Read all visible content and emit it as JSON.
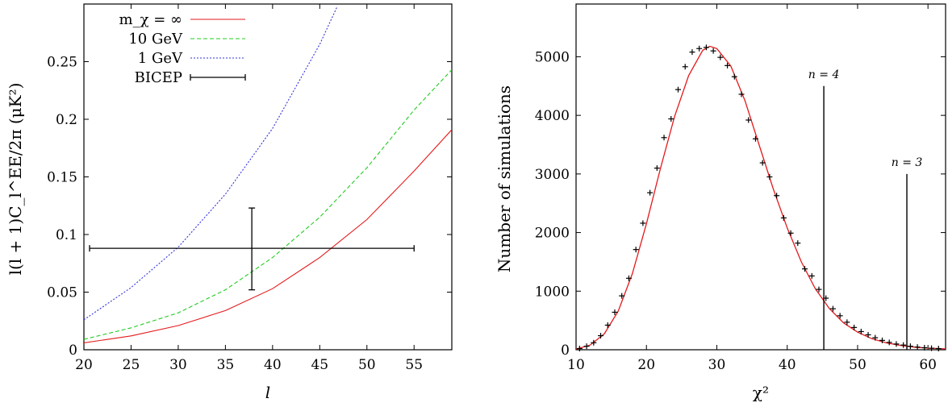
{
  "chart_data": [
    {
      "type": "line",
      "xlabel": "l",
      "ylabel": "l(l + 1)C_l^EE/2π (μK²)",
      "xlim": [
        20,
        59
      ],
      "ylim": [
        0,
        0.3
      ],
      "x_ticks": [
        "20",
        "25",
        "30",
        "35",
        "40",
        "45",
        "50",
        "55"
      ],
      "y_ticks": [
        "0",
        "0.05",
        "0.1",
        "0.15",
        "0.2",
        "0.25"
      ],
      "legend_placement": "top-left",
      "series": [
        {
          "name": "m_χ = ∞",
          "color": "#e41a1c",
          "dash": "solid",
          "x": [
            20,
            25,
            30,
            35,
            40,
            45,
            50,
            55,
            59
          ],
          "y": [
            0.006,
            0.012,
            0.021,
            0.034,
            0.053,
            0.08,
            0.113,
            0.155,
            0.191
          ]
        },
        {
          "name": "10 GeV",
          "color": "#22cc22",
          "dash": "dashed",
          "x": [
            20,
            25,
            30,
            35,
            40,
            45,
            50,
            55,
            59
          ],
          "y": [
            0.009,
            0.019,
            0.032,
            0.052,
            0.08,
            0.115,
            0.158,
            0.208,
            0.243
          ]
        },
        {
          "name": "1 GeV",
          "color": "#3333dd",
          "dash": "dotted",
          "x": [
            20,
            25,
            30,
            35,
            40,
            45,
            46.8
          ],
          "y": [
            0.026,
            0.054,
            0.089,
            0.135,
            0.192,
            0.265,
            0.297
          ]
        }
      ],
      "errorbar": {
        "name": "BICEP",
        "color": "#000000",
        "x": 37.8,
        "y": 0.088,
        "xerr": [
          20.6,
          55
        ],
        "yerr": [
          0.052,
          0.123
        ]
      }
    },
    {
      "type": "scatter",
      "xlabel": "χ²",
      "ylabel": "Number of simulations",
      "xlim": [
        10,
        62.5
      ],
      "ylim": [
        0,
        5900
      ],
      "x_ticks": [
        "10",
        "20",
        "30",
        "40",
        "50",
        "60"
      ],
      "y_ticks": [
        "0",
        "1000",
        "2000",
        "3000",
        "4000",
        "5000"
      ],
      "points": {
        "color": "#000000",
        "x": [
          10.5,
          11.5,
          12.5,
          13.5,
          14.5,
          15.5,
          16.5,
          17.5,
          18.5,
          19.5,
          20.5,
          21.5,
          22.5,
          23.5,
          24.5,
          25.5,
          26.5,
          27.5,
          28.5,
          29.5,
          30.5,
          31.5,
          32.5,
          33.5,
          34.5,
          35.5,
          36.5,
          37.5,
          38.5,
          39.5,
          40.5,
          41.5,
          42.5,
          43.5,
          44.5,
          45.5,
          46.5,
          47.5,
          48.5,
          49.5,
          50.5,
          51.5,
          52.5,
          53.5,
          54.5,
          55.5,
          56.5,
          57.5,
          58.5,
          59.5,
          60.5,
          61.5
        ],
        "y": [
          20,
          60,
          120,
          240,
          420,
          640,
          920,
          1220,
          1710,
          2160,
          2680,
          3100,
          3620,
          3940,
          4440,
          4830,
          5080,
          5140,
          5160,
          5100,
          4990,
          4850,
          4660,
          4360,
          3920,
          3600,
          3190,
          2950,
          2630,
          2250,
          1990,
          1820,
          1380,
          1260,
          1030,
          880,
          700,
          580,
          470,
          380,
          310,
          255,
          205,
          160,
          125,
          98,
          80,
          60,
          46,
          35,
          26,
          20
        ]
      },
      "fit_curve": {
        "color": "#e41a1c",
        "x": [
          10,
          12,
          14,
          16,
          18,
          20,
          22,
          24,
          26,
          28,
          29,
          30,
          32,
          34,
          36,
          38,
          40,
          42,
          44,
          46,
          48,
          50,
          52,
          54,
          56,
          58,
          60,
          62.5
        ],
        "y": [
          10,
          80,
          270,
          660,
          1300,
          2150,
          3100,
          3980,
          4680,
          5110,
          5180,
          5140,
          4840,
          4250,
          3500,
          2750,
          2080,
          1500,
          1040,
          700,
          460,
          300,
          190,
          120,
          75,
          45,
          28,
          15
        ]
      },
      "annotations": [
        {
          "label": "n = 4",
          "x": 45.2,
          "height": 4500
        },
        {
          "label": "n = 3",
          "x": 57.0,
          "height": 3000
        }
      ]
    }
  ]
}
